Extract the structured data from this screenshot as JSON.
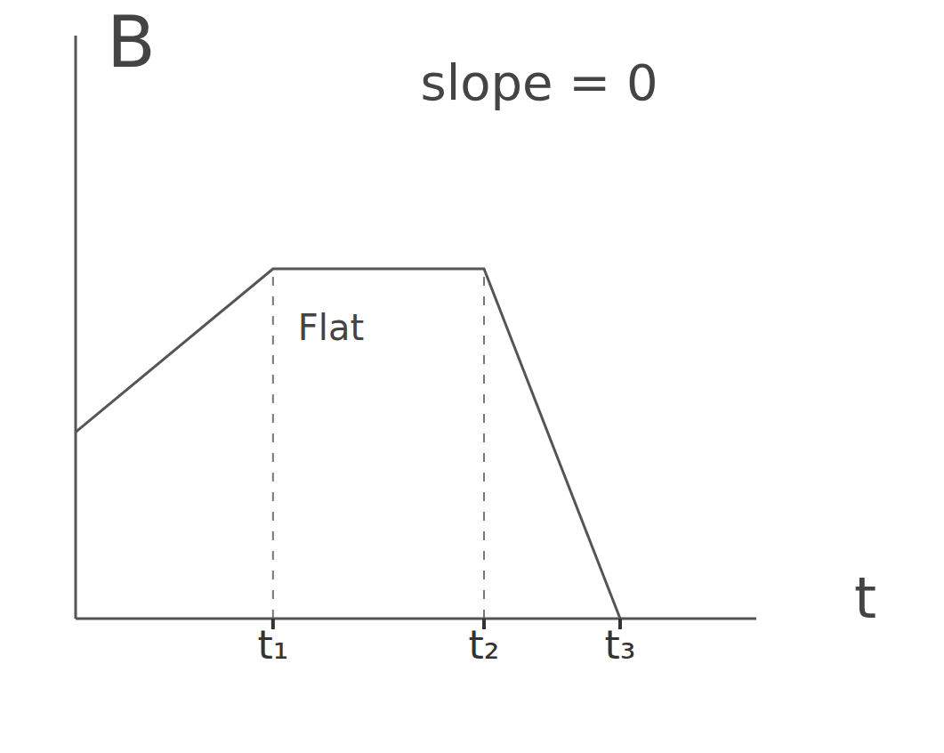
{
  "chart_data": {
    "type": "line",
    "x_label": "t",
    "y_label": "B",
    "x": [
      0,
      2.9,
      6,
      8
    ],
    "values": [
      3.2,
      6,
      6,
      0
    ],
    "color": "#555555",
    "xlim": [
      0,
      10
    ],
    "ylim": [
      0,
      10
    ],
    "xticks": [
      {
        "value": 2.9,
        "label": "t₁"
      },
      {
        "value": 6,
        "label": "t₂"
      },
      {
        "value": 8,
        "label": "t₃"
      }
    ],
    "yticks": [],
    "tick_labels": "x",
    "grid": false,
    "annotations": [
      {
        "text": "Flat",
        "x": 3.2,
        "y": 5.0
      },
      {
        "text": "slope = 0",
        "x": 5.0,
        "y": 9.2
      }
    ]
  }
}
